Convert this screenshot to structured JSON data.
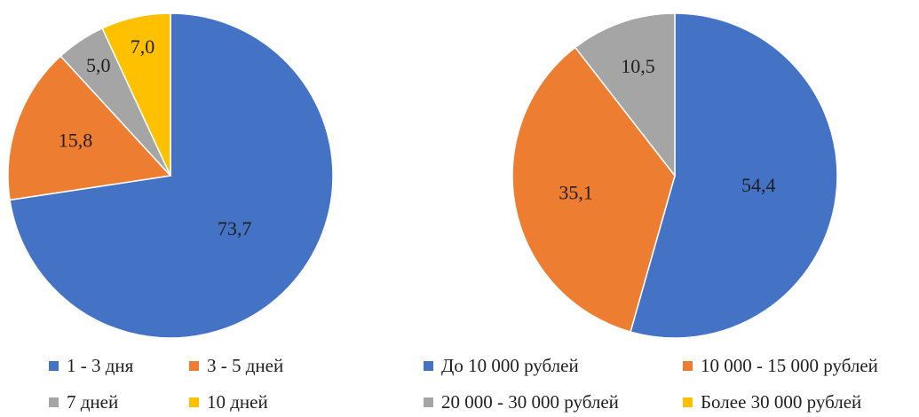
{
  "chart_data": [
    {
      "type": "pie",
      "title": "",
      "colors": [
        "#4472C4",
        "#ED7D31",
        "#A5A5A5",
        "#FFC000"
      ],
      "categories": [
        "1 - 3 дня",
        "3 - 5 дней",
        "7 дней",
        "10 дней"
      ],
      "values": [
        73.7,
        15.8,
        5.0,
        7.0
      ],
      "data_labels": [
        "73,7",
        "15,8",
        "5,0",
        "7,0"
      ],
      "legend_position": "bottom"
    },
    {
      "type": "pie",
      "title": "",
      "colors": [
        "#4472C4",
        "#ED7D31",
        "#A5A5A5",
        "#FFC000"
      ],
      "categories": [
        "До 10 000 рублей",
        "10 000 - 15 000 рублей",
        "20 000 - 30 000 рублей",
        "Более 30 000 рублей"
      ],
      "values": [
        54.4,
        35.1,
        10.5,
        0
      ],
      "data_labels": [
        "54,4",
        "35,1",
        "10,5",
        ""
      ],
      "legend_position": "bottom"
    }
  ],
  "legends": [
    {
      "items": [
        {
          "label": "1 - 3 дня",
          "color": "#4472C4"
        },
        {
          "label": "3 - 5 дней",
          "color": "#ED7D31"
        },
        {
          "label": "7 дней",
          "color": "#A5A5A5"
        },
        {
          "label": "10 дней",
          "color": "#FFC000"
        }
      ]
    },
    {
      "items": [
        {
          "label": "До 10 000 рублей",
          "color": "#4472C4"
        },
        {
          "label": "10 000 - 15 000 рублей",
          "color": "#ED7D31"
        },
        {
          "label": "20 000 - 30 000 рублей",
          "color": "#A5A5A5"
        },
        {
          "label": "Более 30 000 рублей",
          "color": "#FFC000"
        }
      ]
    }
  ]
}
